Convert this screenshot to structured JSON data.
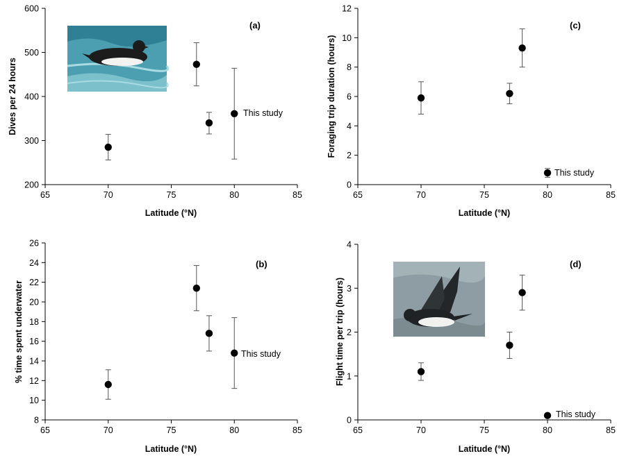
{
  "chart_data": [
    {
      "id": "a",
      "type": "scatter",
      "panel_label": "(a)",
      "title": "",
      "xlabel": "Latitude (°N)",
      "ylabel": "Dives per 24 hours",
      "xlim": [
        65,
        85
      ],
      "ylim": [
        200,
        600
      ],
      "xticks": [
        65,
        70,
        75,
        80,
        85
      ],
      "yticks": [
        200,
        300,
        400,
        500,
        600
      ],
      "grid": false,
      "points": [
        {
          "x": 70,
          "y": 285,
          "low": 256,
          "high": 314
        },
        {
          "x": 77,
          "y": 473,
          "low": 424,
          "high": 522
        },
        {
          "x": 78,
          "y": 340,
          "low": 315,
          "high": 364
        },
        {
          "x": 80,
          "y": 361,
          "low": 258,
          "high": 464
        }
      ],
      "annotation": {
        "text": "This study",
        "x": 80,
        "y": 361
      },
      "photo": "thick-billed murre swimming"
    },
    {
      "id": "b",
      "type": "scatter",
      "panel_label": "(b)",
      "title": "",
      "xlabel": "Latitude (°N)",
      "ylabel": "% time spent underwater",
      "xlim": [
        65,
        85
      ],
      "ylim": [
        8,
        26
      ],
      "xticks": [
        65,
        70,
        75,
        80,
        85
      ],
      "yticks": [
        8,
        10,
        12,
        14,
        16,
        18,
        20,
        22,
        24,
        26
      ],
      "grid": false,
      "points": [
        {
          "x": 70,
          "y": 11.6,
          "low": 10.1,
          "high": 13.1
        },
        {
          "x": 77,
          "y": 21.4,
          "low": 19.1,
          "high": 23.7
        },
        {
          "x": 78,
          "y": 16.8,
          "low": 15.0,
          "high": 18.6
        },
        {
          "x": 80,
          "y": 14.8,
          "low": 11.2,
          "high": 18.4
        }
      ],
      "annotation": {
        "text": "This study",
        "x": 80,
        "y": 14.8
      }
    },
    {
      "id": "c",
      "type": "scatter",
      "panel_label": "(c)",
      "title": "",
      "xlabel": "Latitude (°N)",
      "ylabel": "Foraging trip duration (hours)",
      "xlim": [
        65,
        85
      ],
      "ylim": [
        0,
        12
      ],
      "xticks": [
        65,
        70,
        75,
        80,
        85
      ],
      "yticks": [
        0,
        2,
        4,
        6,
        8,
        10,
        12
      ],
      "grid": false,
      "points": [
        {
          "x": 70,
          "y": 5.9,
          "low": 4.8,
          "high": 7.0
        },
        {
          "x": 77,
          "y": 6.2,
          "low": 5.5,
          "high": 6.9
        },
        {
          "x": 78,
          "y": 9.3,
          "low": 8.0,
          "high": 10.6
        },
        {
          "x": 80,
          "y": 0.8,
          "low": 0.5,
          "high": 1.1
        }
      ],
      "annotation": {
        "text": "This study",
        "x": 80,
        "y": 0.8
      }
    },
    {
      "id": "d",
      "type": "scatter",
      "panel_label": "(d)",
      "title": "",
      "xlabel": "Latitude (°N)",
      "ylabel": "Flight time per trip (hours)",
      "xlim": [
        65,
        85
      ],
      "ylim": [
        0,
        4
      ],
      "xticks": [
        65,
        70,
        75,
        80,
        85
      ],
      "yticks": [
        0,
        1,
        2,
        3,
        4
      ],
      "grid": false,
      "points": [
        {
          "x": 70,
          "y": 1.1,
          "low": 0.9,
          "high": 1.3
        },
        {
          "x": 77,
          "y": 1.7,
          "low": 1.4,
          "high": 2.0
        },
        {
          "x": 78,
          "y": 2.9,
          "low": 2.5,
          "high": 3.3
        },
        {
          "x": 80,
          "y": 0.1,
          "low": 0.1,
          "high": 0.1
        }
      ],
      "annotation": {
        "text": "This study",
        "x": 80,
        "y": 0.1
      },
      "photo": "little auk in flight"
    }
  ]
}
